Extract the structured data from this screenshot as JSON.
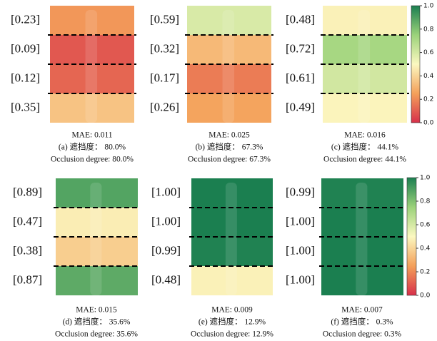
{
  "panels": [
    {
      "stripes": [
        {
          "value": 0.23,
          "label": "[0.23]"
        },
        {
          "value": 0.09,
          "label": "[0.09]"
        },
        {
          "value": 0.12,
          "label": "[0.12]"
        },
        {
          "value": 0.35,
          "label": "[0.35]"
        }
      ],
      "mae": "MAE: 0.011",
      "caption_cn": "(a) 遮挡度： 80.0%",
      "caption_en": "Occlusion degree: 80.0%"
    },
    {
      "stripes": [
        {
          "value": 0.59,
          "label": "[0.59]"
        },
        {
          "value": 0.32,
          "label": "[0.32]"
        },
        {
          "value": 0.17,
          "label": "[0.17]"
        },
        {
          "value": 0.26,
          "label": "[0.26]"
        }
      ],
      "mae": "MAE: 0.025",
      "caption_cn": "(b) 遮挡度： 67.3%",
      "caption_en": "Occlusion degree: 67.3%"
    },
    {
      "stripes": [
        {
          "value": 0.48,
          "label": "[0.48]"
        },
        {
          "value": 0.72,
          "label": "[0.72]"
        },
        {
          "value": 0.61,
          "label": "[0.61]"
        },
        {
          "value": 0.49,
          "label": "[0.49]"
        }
      ],
      "mae": "MAE: 0.016",
      "caption_cn": "(c) 遮挡度： 44.1%",
      "caption_en": "Occlusion degree: 44.1%"
    },
    {
      "stripes": [
        {
          "value": 0.89,
          "label": "[0.89]"
        },
        {
          "value": 0.47,
          "label": "[0.47]"
        },
        {
          "value": 0.38,
          "label": "[0.38]"
        },
        {
          "value": 0.87,
          "label": "[0.87]"
        }
      ],
      "mae": "MAE: 0.015",
      "caption_cn": "(d) 遮挡度： 35.6%",
      "caption_en": "Occlusion degree: 35.6%"
    },
    {
      "stripes": [
        {
          "value": 1,
          "label": "[1.00]"
        },
        {
          "value": 1,
          "label": "[1.00]"
        },
        {
          "value": 0.99,
          "label": "[0.99]"
        },
        {
          "value": 0.48,
          "label": "[0.48]"
        }
      ],
      "mae": "MAE: 0.009",
      "caption_cn": "(e) 遮挡度： 12.9%",
      "caption_en": "Occlusion degree: 12.9%"
    },
    {
      "stripes": [
        {
          "value": 0.99,
          "label": "[0.99]"
        },
        {
          "value": 1,
          "label": "[1.00]"
        },
        {
          "value": 1,
          "label": "[1.00]"
        },
        {
          "value": 1,
          "label": "[1.00]"
        }
      ],
      "mae": "MAE: 0.007",
      "caption_cn": "(f) 遮挡度： 0.3%",
      "caption_en": "Occlusion degree: 0.3%"
    }
  ],
  "colorbars": [
    {
      "lim": [
        0,
        1
      ],
      "ticks": [
        {
          "value": 0,
          "label": "0.0"
        },
        0.2,
        0.4,
        0.6,
        0.8,
        {
          "value": 1,
          "label": "1.0"
        }
      ]
    },
    {
      "lim": [
        0,
        1
      ],
      "ticks": [
        {
          "value": 0,
          "label": "0.0"
        },
        0.2,
        0.4,
        0.6,
        0.8,
        {
          "value": 1,
          "label": "1.0"
        }
      ]
    }
  ]
}
